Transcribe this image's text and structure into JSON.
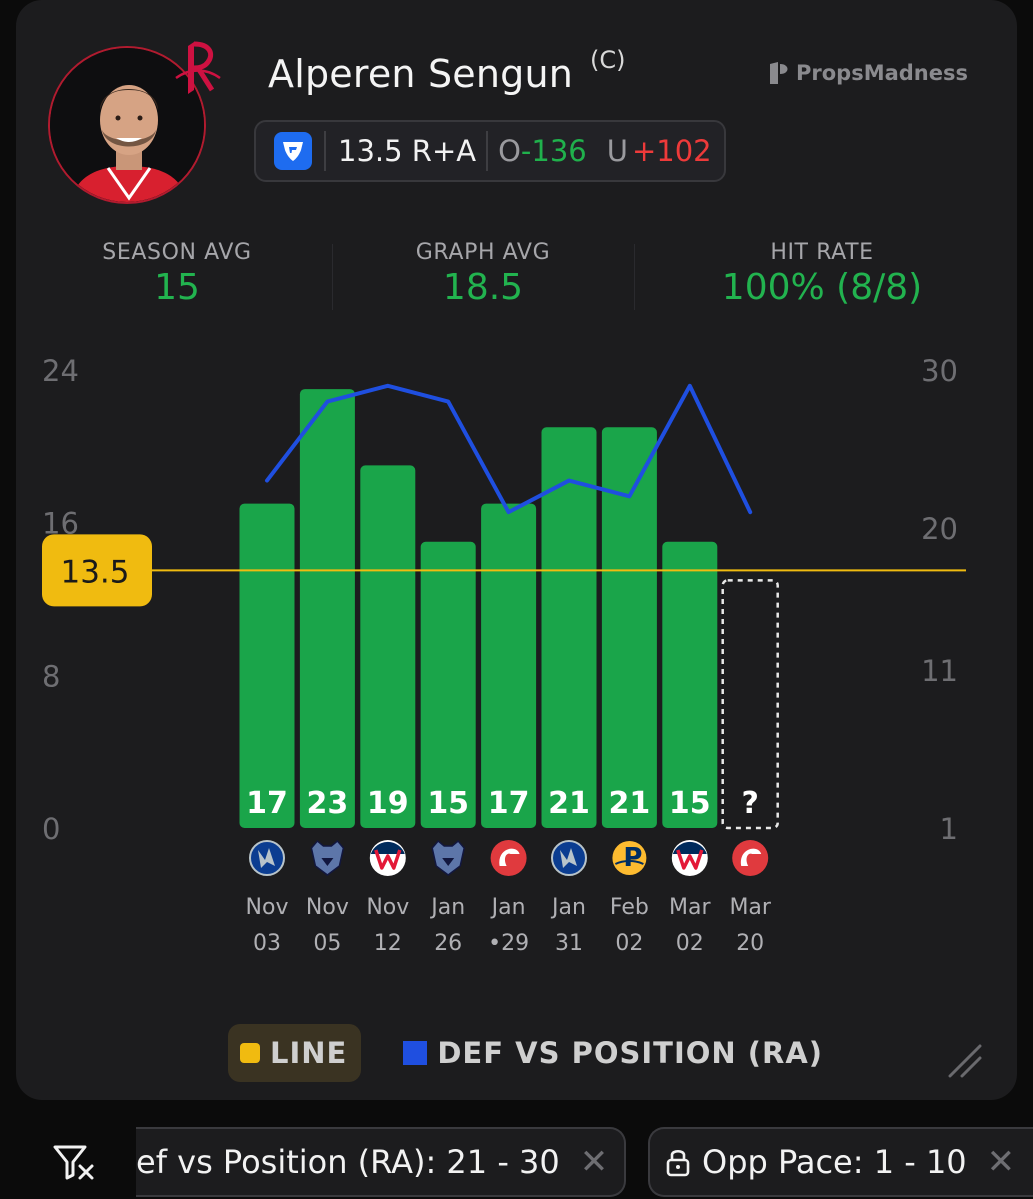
{
  "player": {
    "name": "Alperen Sengun",
    "position": "(C)",
    "team_color": "#ce1141"
  },
  "brand": "PropsMadness",
  "prop": {
    "line": "13.5 R+A",
    "over_label": "O",
    "over_odds": "-136",
    "under_label": "U",
    "under_odds": "+102"
  },
  "stats": {
    "season_avg_label": "SEASON AVG",
    "season_avg": "15",
    "graph_avg_label": "GRAPH AVG",
    "graph_avg": "18.5",
    "hit_rate_label": "HIT RATE",
    "hit_rate": "100% (8/8)"
  },
  "chart_data": {
    "type": "bar",
    "categories": [
      "Nov 03",
      "Nov 05",
      "Nov 12",
      "Jan 26",
      "Jan •29",
      "Jan 31",
      "Feb 02",
      "Mar 02",
      "Mar 20"
    ],
    "cat_month": [
      "Nov",
      "Nov",
      "Nov",
      "Jan",
      "Jan",
      "Jan",
      "Feb",
      "Mar",
      "Mar"
    ],
    "cat_day": [
      "03",
      "05",
      "12",
      "26",
      "•29",
      "31",
      "02",
      "02",
      "20"
    ],
    "opponents": [
      "mavericks",
      "grizzlies",
      "wizards",
      "grizzlies",
      "hawks",
      "mavericks",
      "pacers",
      "wizards",
      "hawks"
    ],
    "values": [
      17,
      23,
      19,
      15,
      17,
      21,
      21,
      15,
      null
    ],
    "value_labels": [
      "17",
      "23",
      "19",
      "15",
      "17",
      "21",
      "21",
      "15",
      "?"
    ],
    "bar_color": "#1aa54a",
    "line_value": 13.5,
    "line_label": "13.5",
    "line_color": "#f0bb10",
    "y_left": {
      "ticks": [
        0,
        8,
        16,
        24
      ],
      "tick_labels": [
        "0",
        "8",
        "16",
        "24"
      ],
      "range": [
        0,
        24
      ]
    },
    "y_right": {
      "ticks": [
        1,
        11,
        20,
        30
      ],
      "tick_labels": [
        "1",
        "11",
        "20",
        "30"
      ],
      "range": [
        1,
        30
      ]
    },
    "series": [
      {
        "name": "DEF VS POSITION (RA)",
        "axis": "right",
        "color": "#1f4fe0",
        "values": [
          23,
          28,
          29,
          28,
          21,
          23,
          22,
          29,
          21
        ]
      }
    ],
    "legend": [
      "LINE",
      "DEF VS POSITION (RA)"
    ]
  },
  "filters": [
    {
      "label": "ef vs Position (RA): 21 - 30",
      "close": "✕"
    },
    {
      "label": "Opp Pace: 1 - 10",
      "close": "✕"
    }
  ],
  "icons": [
    "rockets-logo",
    "fanduel-icon",
    "propsmadness-logo",
    "resize-icon",
    "filter-settings-icon",
    "lock-icon",
    "close-icon"
  ]
}
